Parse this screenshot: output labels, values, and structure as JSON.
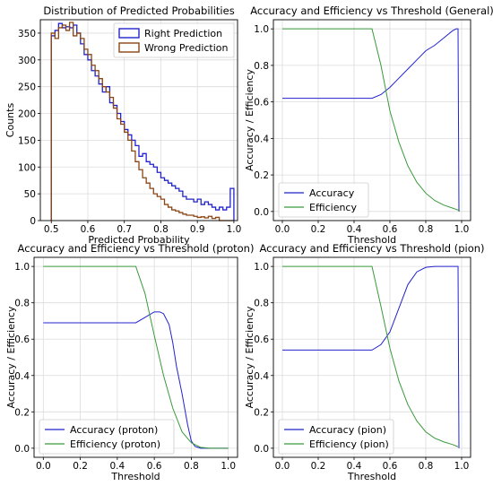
{
  "colors": {
    "blue": "#2222cc",
    "green": "#3a9a3a",
    "brown": "#8b4513",
    "accent_right": "#1a1ad6",
    "accent_wrong": "#8b4a10"
  },
  "chart_data": [
    {
      "type": "histogram",
      "title": "Distribution of Predicted Probabilities",
      "xlabel": "Predicted Probability",
      "ylabel": "Counts",
      "xlim": [
        0.47,
        1.01
      ],
      "ylim": [
        0,
        375
      ],
      "xticks": [
        0.5,
        0.6,
        0.7,
        0.8,
        0.9,
        1.0
      ],
      "xtick_labels": [
        "0.5",
        "0.6",
        "0.7",
        "0.8",
        "0.9",
        "1.0"
      ],
      "yticks": [
        0,
        50,
        100,
        150,
        200,
        250,
        300,
        350
      ],
      "ytick_labels": [
        "0",
        "50",
        "100",
        "150",
        "200",
        "250",
        "300",
        "350"
      ],
      "legend_position": "upper-right",
      "bins": [
        0.5,
        0.51,
        0.52,
        0.53,
        0.54,
        0.55,
        0.56,
        0.57,
        0.58,
        0.59,
        0.6,
        0.61,
        0.62,
        0.63,
        0.64,
        0.65,
        0.66,
        0.67,
        0.68,
        0.69,
        0.7,
        0.71,
        0.72,
        0.73,
        0.74,
        0.75,
        0.76,
        0.77,
        0.78,
        0.79,
        0.8,
        0.81,
        0.82,
        0.83,
        0.84,
        0.85,
        0.86,
        0.87,
        0.88,
        0.89,
        0.9,
        0.91,
        0.92,
        0.93,
        0.94,
        0.95,
        0.96,
        0.97,
        0.98,
        0.99,
        1.0
      ],
      "series": [
        {
          "name": "Right Prediction",
          "color": "#2222cc",
          "counts": [
            345,
            355,
            368,
            360,
            362,
            360,
            365,
            350,
            330,
            310,
            300,
            280,
            270,
            255,
            240,
            250,
            220,
            215,
            200,
            185,
            170,
            160,
            150,
            140,
            120,
            125,
            110,
            105,
            100,
            90,
            80,
            75,
            70,
            65,
            60,
            55,
            45,
            40,
            40,
            35,
            40,
            30,
            35,
            30,
            25,
            20,
            25,
            20,
            25,
            60
          ]
        },
        {
          "name": "Wrong Prediction",
          "color": "#8b4513",
          "counts": [
            350,
            340,
            360,
            365,
            355,
            370,
            345,
            350,
            340,
            320,
            310,
            290,
            280,
            265,
            250,
            240,
            230,
            210,
            190,
            180,
            165,
            150,
            130,
            110,
            95,
            80,
            70,
            60,
            50,
            45,
            40,
            30,
            25,
            20,
            18,
            15,
            12,
            10,
            10,
            8,
            6,
            7,
            5,
            8,
            4,
            6,
            0,
            0,
            0,
            0
          ]
        }
      ]
    },
    {
      "type": "line",
      "title": "Accuracy and Efficiency vs Threshold (General)",
      "xlabel": "Threshold",
      "ylabel": "Accuracy / Efficiency",
      "xlim": [
        -0.05,
        1.05
      ],
      "ylim": [
        -0.05,
        1.05
      ],
      "xticks": [
        0.0,
        0.2,
        0.4,
        0.6,
        0.8,
        1.0
      ],
      "xtick_labels": [
        "0.0",
        "0.2",
        "0.4",
        "0.6",
        "0.8",
        "1.0"
      ],
      "yticks": [
        0.0,
        0.2,
        0.4,
        0.6,
        0.8,
        1.0
      ],
      "ytick_labels": [
        "0.0",
        "0.2",
        "0.4",
        "0.6",
        "0.8",
        "1.0"
      ],
      "legend_position": "lower-left",
      "series": [
        {
          "name": "Accuracy",
          "color": "#2222cc",
          "x": [
            0,
            0.5,
            0.55,
            0.6,
            0.65,
            0.7,
            0.75,
            0.8,
            0.85,
            0.9,
            0.95,
            0.97,
            0.98,
            0.985
          ],
          "y": [
            0.62,
            0.62,
            0.64,
            0.68,
            0.73,
            0.78,
            0.83,
            0.88,
            0.91,
            0.95,
            0.99,
            1.0,
            1.0,
            0.0
          ]
        },
        {
          "name": "Efficiency",
          "color": "#3a9a3a",
          "x": [
            0,
            0.5,
            0.55,
            0.6,
            0.65,
            0.7,
            0.75,
            0.8,
            0.85,
            0.9,
            0.95,
            0.98,
            0.99
          ],
          "y": [
            1.0,
            1.0,
            0.8,
            0.55,
            0.38,
            0.25,
            0.16,
            0.1,
            0.06,
            0.035,
            0.018,
            0.008,
            0.003
          ]
        }
      ]
    },
    {
      "type": "line",
      "title": "Accuracy and Efficiency vs Threshold (proton)",
      "xlabel": "Threshold",
      "ylabel": "Accuracy / Efficiency",
      "xlim": [
        -0.05,
        1.05
      ],
      "ylim": [
        -0.05,
        1.05
      ],
      "xticks": [
        0.0,
        0.2,
        0.4,
        0.6,
        0.8,
        1.0
      ],
      "xtick_labels": [
        "0.0",
        "0.2",
        "0.4",
        "0.6",
        "0.8",
        "1.0"
      ],
      "yticks": [
        0.0,
        0.2,
        0.4,
        0.6,
        0.8,
        1.0
      ],
      "ytick_labels": [
        "0.0",
        "0.2",
        "0.4",
        "0.6",
        "0.8",
        "1.0"
      ],
      "legend_position": "lower-left",
      "series": [
        {
          "name": "Accuracy (proton)",
          "color": "#2222cc",
          "x": [
            0,
            0.5,
            0.55,
            0.6,
            0.63,
            0.65,
            0.68,
            0.7,
            0.72,
            0.75,
            0.78,
            0.8,
            0.82,
            0.85,
            1.0
          ],
          "y": [
            0.69,
            0.69,
            0.72,
            0.75,
            0.75,
            0.74,
            0.68,
            0.58,
            0.45,
            0.3,
            0.13,
            0.04,
            0.01,
            0.0,
            0.0
          ]
        },
        {
          "name": "Efficiency (proton)",
          "color": "#3a9a3a",
          "x": [
            0,
            0.5,
            0.55,
            0.6,
            0.65,
            0.7,
            0.75,
            0.8,
            0.85,
            0.9,
            1.0
          ],
          "y": [
            1.0,
            1.0,
            0.85,
            0.62,
            0.4,
            0.22,
            0.09,
            0.03,
            0.005,
            0.0,
            0.0
          ]
        }
      ]
    },
    {
      "type": "line",
      "title": "Accuracy and Efficiency vs Threshold (pion)",
      "xlabel": "Threshold",
      "ylabel": "Accuracy / Efficiency",
      "xlim": [
        -0.05,
        1.05
      ],
      "ylim": [
        -0.05,
        1.05
      ],
      "xticks": [
        0.0,
        0.2,
        0.4,
        0.6,
        0.8,
        1.0
      ],
      "xtick_labels": [
        "0.0",
        "0.2",
        "0.4",
        "0.6",
        "0.8",
        "1.0"
      ],
      "yticks": [
        0.0,
        0.2,
        0.4,
        0.6,
        0.8,
        1.0
      ],
      "ytick_labels": [
        "0.0",
        "0.2",
        "0.4",
        "0.6",
        "0.8",
        "1.0"
      ],
      "legend_position": "lower-left",
      "series": [
        {
          "name": "Accuracy (pion)",
          "color": "#2222cc",
          "x": [
            0,
            0.5,
            0.55,
            0.6,
            0.65,
            0.7,
            0.75,
            0.8,
            0.85,
            0.97,
            0.98,
            0.985
          ],
          "y": [
            0.54,
            0.54,
            0.57,
            0.64,
            0.77,
            0.9,
            0.97,
            0.995,
            1.0,
            1.0,
            1.0,
            0.0
          ]
        },
        {
          "name": "Efficiency (pion)",
          "color": "#3a9a3a",
          "x": [
            0,
            0.5,
            0.55,
            0.6,
            0.65,
            0.7,
            0.75,
            0.8,
            0.85,
            0.9,
            0.95,
            0.98
          ],
          "y": [
            1.0,
            1.0,
            0.78,
            0.55,
            0.37,
            0.24,
            0.15,
            0.09,
            0.055,
            0.035,
            0.02,
            0.008
          ]
        }
      ]
    }
  ]
}
